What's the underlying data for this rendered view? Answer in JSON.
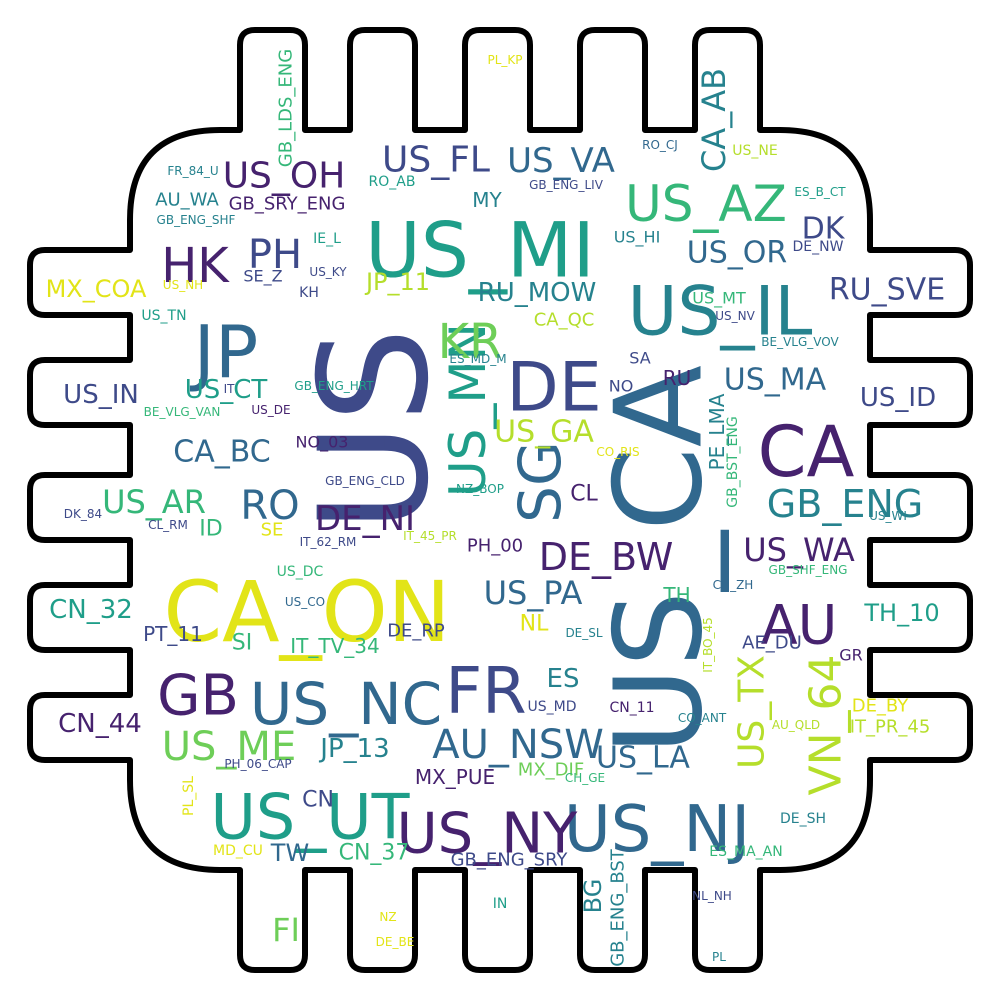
{
  "palette": {
    "dark_purple": "#46226e",
    "indigo": "#3e4a89",
    "steel_blue": "#31688e",
    "teal": "#26828e",
    "sea_green": "#1f9e89",
    "green": "#35b779",
    "lime": "#6ece58",
    "yellow_green": "#b5de2b",
    "yellow": "#e2e418"
  },
  "outline": {
    "shape": "chip",
    "stroke": "#000000",
    "fill": "#ffffff"
  },
  "words": [
    {
      "text": "US",
      "color": "indigo"
    },
    {
      "text": "US_CA",
      "color": "steel_blue"
    },
    {
      "text": "CA_ON",
      "color": "yellow"
    },
    {
      "text": "US_MI",
      "color": "sea_green"
    },
    {
      "text": "US_IL",
      "color": "teal"
    },
    {
      "text": "JP",
      "color": "steel_blue"
    },
    {
      "text": "DE",
      "color": "indigo"
    },
    {
      "text": "CA",
      "color": "dark_purple"
    },
    {
      "text": "US_NJ",
      "color": "steel_blue"
    },
    {
      "text": "US_NC",
      "color": "steel_blue"
    },
    {
      "text": "FR",
      "color": "indigo"
    },
    {
      "text": "US_UT",
      "color": "sea_green"
    },
    {
      "text": "US_NY",
      "color": "dark_purple"
    },
    {
      "text": "SG",
      "color": "steel_blue"
    },
    {
      "text": "US_AZ",
      "color": "green"
    },
    {
      "text": "GB",
      "color": "dark_purple"
    },
    {
      "text": "US_MN",
      "color": "sea_green"
    },
    {
      "text": "HK",
      "color": "dark_purple"
    },
    {
      "text": "PH",
      "color": "indigo"
    },
    {
      "text": "KR",
      "color": "lime"
    },
    {
      "text": "AU",
      "color": "dark_purple"
    },
    {
      "text": "VN_64",
      "color": "yellow_green"
    },
    {
      "text": "AU_NSW",
      "color": "steel_blue"
    },
    {
      "text": "US_ME",
      "color": "lime"
    },
    {
      "text": "GB_ENG",
      "color": "teal"
    },
    {
      "text": "DE_BW",
      "color": "dark_purple"
    },
    {
      "text": "US_OH",
      "color": "dark_purple"
    },
    {
      "text": "US_FL",
      "color": "indigo"
    },
    {
      "text": "US_VA",
      "color": "steel_blue"
    },
    {
      "text": "US_TX",
      "color": "yellow_green"
    },
    {
      "text": "RO",
      "color": "steel_blue"
    },
    {
      "text": "DE_NI",
      "color": "dark_purple"
    },
    {
      "text": "US_AR",
      "color": "green"
    },
    {
      "text": "US_PA",
      "color": "steel_blue"
    },
    {
      "text": "US_WA",
      "color": "dark_purple"
    },
    {
      "text": "US_GA",
      "color": "yellow_green"
    },
    {
      "text": "US_OR",
      "color": "steel_blue"
    },
    {
      "text": "CA_AB",
      "color": "teal"
    },
    {
      "text": "US_MA",
      "color": "steel_blue"
    },
    {
      "text": "US_LA",
      "color": "steel_blue"
    },
    {
      "text": "RU_SVE",
      "color": "indigo"
    },
    {
      "text": "RU_MOW",
      "color": "teal"
    },
    {
      "text": "CA_BC",
      "color": "steel_blue"
    },
    {
      "text": "CN_32",
      "color": "sea_green"
    },
    {
      "text": "CN_44",
      "color": "dark_purple"
    },
    {
      "text": "JP_13",
      "color": "teal"
    },
    {
      "text": "US_IN",
      "color": "indigo"
    },
    {
      "text": "US_ID",
      "color": "indigo"
    },
    {
      "text": "US_CT",
      "color": "sea_green"
    },
    {
      "text": "DK",
      "color": "indigo"
    },
    {
      "text": "MX_COA",
      "color": "yellow"
    },
    {
      "text": "JP_11",
      "color": "yellow_green"
    },
    {
      "text": "TH_10",
      "color": "sea_green"
    },
    {
      "text": "ES",
      "color": "teal"
    },
    {
      "text": "PE_LMA",
      "color": "teal"
    },
    {
      "text": "US_MD",
      "color": "indigo"
    },
    {
      "text": "MX_PUE",
      "color": "dark_purple"
    },
    {
      "text": "MX_DIF",
      "color": "lime"
    },
    {
      "text": "GB_ENG_SRY",
      "color": "indigo"
    },
    {
      "text": "CN_37",
      "color": "green"
    },
    {
      "text": "TW",
      "color": "steel_blue"
    },
    {
      "text": "CN",
      "color": "indigo"
    },
    {
      "text": "FI",
      "color": "lime"
    },
    {
      "text": "BG",
      "color": "teal"
    },
    {
      "text": "GB_ENG_BST",
      "color": "teal"
    },
    {
      "text": "IT_PR_45",
      "color": "yellow_green"
    },
    {
      "text": "DE_BY",
      "color": "yellow"
    },
    {
      "text": "GR",
      "color": "dark_purple"
    },
    {
      "text": "AE_DU",
      "color": "indigo"
    },
    {
      "text": "TH",
      "color": "green"
    },
    {
      "text": "NL",
      "color": "yellow"
    },
    {
      "text": "CL",
      "color": "dark_purple"
    },
    {
      "text": "ID",
      "color": "green"
    },
    {
      "text": "SE",
      "color": "yellow"
    },
    {
      "text": "SI",
      "color": "green"
    },
    {
      "text": "IT_TV_34",
      "color": "green"
    },
    {
      "text": "PT_11",
      "color": "indigo"
    },
    {
      "text": "DE_RP",
      "color": "indigo"
    },
    {
      "text": "PH_00",
      "color": "dark_purple"
    },
    {
      "text": "NO_03",
      "color": "dark_purple"
    },
    {
      "text": "IL",
      "color": "indigo"
    },
    {
      "text": "MY",
      "color": "teal"
    },
    {
      "text": "CA_QC",
      "color": "yellow_green"
    },
    {
      "text": "SA",
      "color": "indigo"
    },
    {
      "text": "RU",
      "color": "dark_purple"
    },
    {
      "text": "NO",
      "color": "indigo"
    },
    {
      "text": "US_MT",
      "color": "green"
    },
    {
      "text": "US_NV",
      "color": "indigo"
    },
    {
      "text": "US_HI",
      "color": "teal"
    },
    {
      "text": "DE_NW",
      "color": "indigo"
    },
    {
      "text": "US_NE",
      "color": "yellow_green"
    },
    {
      "text": "RO_CJ",
      "color": "steel_blue"
    },
    {
      "text": "ES_B_CT",
      "color": "sea_green"
    },
    {
      "text": "GB_ENG_LIV",
      "color": "indigo"
    },
    {
      "text": "RO_AB",
      "color": "sea_green"
    },
    {
      "text": "GB_SRY_ENG",
      "color": "dark_purple"
    },
    {
      "text": "AU_WA",
      "color": "teal"
    },
    {
      "text": "FR_84_U",
      "color": "teal"
    },
    {
      "text": "GB_ENG_SHF",
      "color": "teal"
    },
    {
      "text": "GB_LDS_ENG",
      "color": "green"
    },
    {
      "text": "PL_KP",
      "color": "yellow"
    },
    {
      "text": "IE_L",
      "color": "sea_green"
    },
    {
      "text": "SE_Z",
      "color": "indigo"
    },
    {
      "text": "US_KY",
      "color": "indigo"
    },
    {
      "text": "KH",
      "color": "indigo"
    },
    {
      "text": "US_NH",
      "color": "yellow"
    },
    {
      "text": "US_TN",
      "color": "sea_green"
    },
    {
      "text": "BE_VLG_VOV",
      "color": "teal"
    },
    {
      "text": "ES_MD_M",
      "color": "teal"
    },
    {
      "text": "IT",
      "color": "indigo"
    },
    {
      "text": "GB_ENG_HRT",
      "color": "sea_green"
    },
    {
      "text": "BE_VLG_VAN",
      "color": "green"
    },
    {
      "text": "US_DE",
      "color": "dark_purple"
    },
    {
      "text": "GB_BST_ENG",
      "color": "green"
    },
    {
      "text": "CO_RIS",
      "color": "yellow"
    },
    {
      "text": "NZ_BOP",
      "color": "sea_green"
    },
    {
      "text": "GB_ENG_CLD",
      "color": "indigo"
    },
    {
      "text": "DK_84",
      "color": "indigo"
    },
    {
      "text": "CL_RM",
      "color": "indigo"
    },
    {
      "text": "IT_62_RM",
      "color": "indigo"
    },
    {
      "text": "IT_45_PR",
      "color": "yellow_green"
    },
    {
      "text": "US_WI",
      "color": "teal"
    },
    {
      "text": "GB_SHF_ENG",
      "color": "green"
    },
    {
      "text": "CH_ZH",
      "color": "steel_blue"
    },
    {
      "text": "US_DC",
      "color": "green"
    },
    {
      "text": "US_CO",
      "color": "steel_blue"
    },
    {
      "text": "DE_SL",
      "color": "teal"
    },
    {
      "text": "IT_BO_45",
      "color": "yellow_green"
    },
    {
      "text": "CN_11",
      "color": "dark_purple"
    },
    {
      "text": "CO_ANT",
      "color": "teal"
    },
    {
      "text": "AU_QLD",
      "color": "yellow_green"
    },
    {
      "text": "PH_06_CAP",
      "color": "indigo"
    },
    {
      "text": "CH_GE",
      "color": "green"
    },
    {
      "text": "PL_SL",
      "color": "yellow"
    },
    {
      "text": "MD_CU",
      "color": "yellow"
    },
    {
      "text": "DE_SH",
      "color": "teal"
    },
    {
      "text": "ES_MA_AN",
      "color": "green"
    },
    {
      "text": "NL_NH",
      "color": "indigo"
    },
    {
      "text": "NZ",
      "color": "yellow"
    },
    {
      "text": "DE_BE",
      "color": "yellow"
    },
    {
      "text": "IN",
      "color": "sea_green"
    },
    {
      "text": "PL",
      "color": "teal"
    }
  ]
}
